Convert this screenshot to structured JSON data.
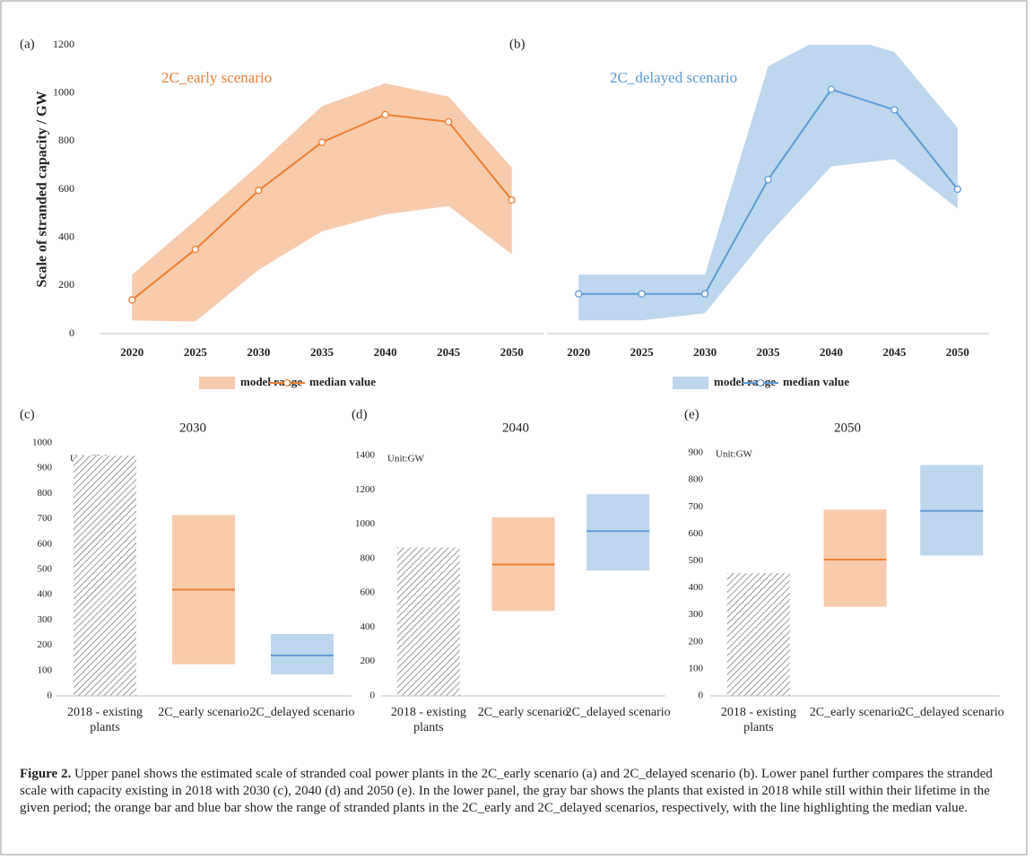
{
  "chart_data": [
    {
      "type": "line",
      "panel": "(a)",
      "annotation": "2C_early scenario",
      "y_label": "Scale of stranded capacity / GW",
      "categories": [
        "2020",
        "2025",
        "2030",
        "2035",
        "2040",
        "2045",
        "2050"
      ],
      "ylim": [
        0,
        1200
      ],
      "yticks": [
        0,
        200,
        400,
        600,
        800,
        1000,
        1200
      ],
      "series": [
        {
          "name": "model range",
          "type": "band",
          "color": "#f8cbad",
          "low": [
            55,
            50,
            265,
            425,
            495,
            530,
            330
          ],
          "high": [
            245,
            470,
            700,
            945,
            1040,
            985,
            690
          ]
        },
        {
          "name": "median value",
          "color": "#ed7d31",
          "values": [
            140,
            350,
            595,
            795,
            910,
            880,
            555
          ]
        }
      ]
    },
    {
      "type": "line",
      "panel": "(b)",
      "annotation": "2C_delayed scenario",
      "categories": [
        "2020",
        "2025",
        "2030",
        "2035",
        "2040",
        "2045",
        "2050"
      ],
      "ylim": [
        0,
        1200
      ],
      "series": [
        {
          "name": "model range",
          "type": "band",
          "color": "#bdd7ee",
          "low": [
            55,
            55,
            85,
            410,
            695,
            725,
            520
          ],
          "high": [
            245,
            245,
            245,
            1110,
            1250,
            1170,
            855
          ]
        },
        {
          "name": "median value",
          "color": "#5b9bd5",
          "values": [
            165,
            165,
            165,
            640,
            1015,
            930,
            600
          ]
        }
      ]
    },
    {
      "type": "range",
      "panel": "(c)",
      "title": "2030",
      "unit_note": "Unit:GW",
      "categories": [
        "2018 - existing plants",
        "2C_early scenario",
        "2C_delayed scenario"
      ],
      "ylim": [
        0,
        1000
      ],
      "yticks": [
        0,
        100,
        200,
        300,
        400,
        500,
        600,
        700,
        800,
        900,
        1000
      ],
      "existing": {
        "value": 950
      },
      "ranges": [
        {
          "low": 125,
          "high": 715,
          "median": 420,
          "fill": "#f8cbad",
          "line": "#ed7d31"
        },
        {
          "low": 85,
          "high": 245,
          "median": 160,
          "fill": "#bdd7ee",
          "line": "#5b9bd5"
        }
      ]
    },
    {
      "type": "range",
      "panel": "(d)",
      "title": "2040",
      "unit_note": "Unit:GW",
      "categories": [
        "2018 - existing plants",
        "2C_early scenario",
        "2C_delayed scenario"
      ],
      "ylim": [
        0,
        1400
      ],
      "yticks": [
        0,
        200,
        400,
        600,
        800,
        1000,
        1200,
        1400
      ],
      "existing": {
        "value": 865
      },
      "ranges": [
        {
          "low": 495,
          "high": 1040,
          "median": 765,
          "fill": "#f8cbad",
          "line": "#ed7d31"
        },
        {
          "low": 730,
          "high": 1175,
          "median": 960,
          "fill": "#bdd7ee",
          "line": "#5b9bd5"
        }
      ]
    },
    {
      "type": "range",
      "panel": "(e)",
      "title": "2050",
      "unit_note": "Unit:GW",
      "categories": [
        "2018 - existing plants",
        "2C_early scenario",
        "2C_delayed scenario"
      ],
      "ylim": [
        0,
        900
      ],
      "yticks": [
        0,
        100,
        200,
        300,
        400,
        500,
        600,
        700,
        800,
        900
      ],
      "existing": {
        "value": 455
      },
      "ranges": [
        {
          "low": 330,
          "high": 690,
          "median": 505,
          "fill": "#f8cbad",
          "line": "#ed7d31"
        },
        {
          "low": 520,
          "high": 855,
          "median": 685,
          "fill": "#bdd7ee",
          "line": "#5b9bd5"
        }
      ]
    }
  ],
  "caption": {
    "label": "Figure 2.",
    "text": "Upper panel shows the estimated scale of stranded coal power plants in the 2C_early scenario (a) and 2C_delayed scenario (b). Lower panel further compares the stranded scale with capacity existing in 2018 with 2030 (c), 2040 (d) and 2050 (e). In the lower panel, the gray bar shows the plants that existed in 2018 while still within their lifetime in the given period; the orange bar and blue bar show the range of stranded plants in the 2C_early and 2C_delayed scenarios, respectively, with the line highlighting the median value."
  }
}
